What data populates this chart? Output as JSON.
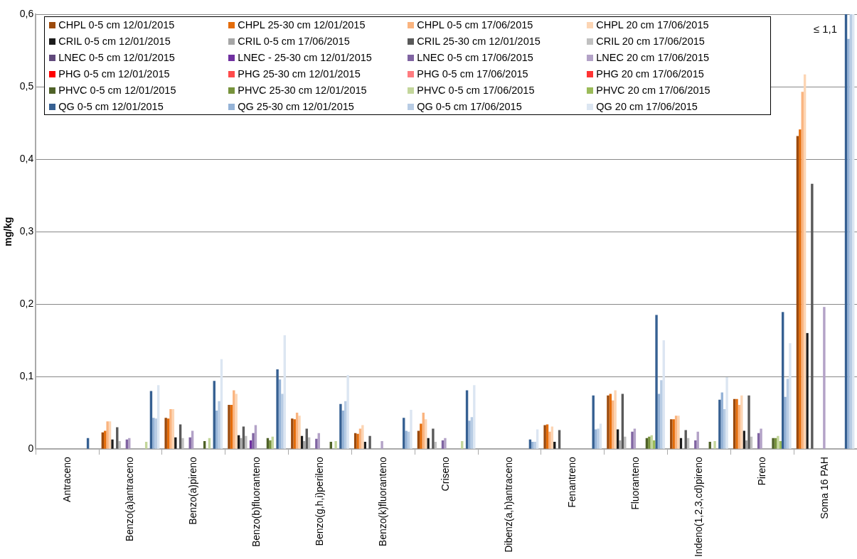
{
  "chart_data": {
    "type": "bar",
    "ylabel": "mg/kg",
    "categories": [
      "Antraceno",
      "Benzo(a)antraceno",
      "Benzo(a)pireno",
      "Benzo(b)fluoranteno",
      "Benzo(g,h,i)perileno",
      "Benzo(k)fluoranteno",
      "Criseno",
      "Dibenz(a,h)antraceno",
      "Fenantreno",
      "Fluoranteno",
      "Indeno(1,2,3,cd)pireno",
      "Pireno",
      "Soma 16 PAH"
    ],
    "ylim": [
      0,
      0.6
    ],
    "yticks": [
      0,
      {
        "value": 0.1,
        "label": "0,1"
      },
      {
        "value": 0.2,
        "label": "0,2"
      },
      {
        "value": 0.3,
        "label": "0,3"
      },
      {
        "value": 0.4,
        "label": "0,4"
      },
      {
        "value": 0.5,
        "label": "0,5"
      },
      {
        "value": 0.6,
        "label": "0,6"
      }
    ],
    "grid": "y",
    "legend": "top left",
    "annotations": [
      "≤ 1,1"
    ],
    "series": [
      {
        "name": "CHPL 0-5 cm 12/01/2015",
        "color": "#9c4a0c",
        "values": [
          null,
          0.023,
          0.043,
          0.061,
          0.042,
          0.022,
          0.025,
          null,
          0.033,
          0.074,
          0.041,
          0.069,
          0.432
        ]
      },
      {
        "name": "CHPL 25-30 cm 12/01/2015",
        "color": "#e46c0a",
        "values": [
          null,
          0.025,
          0.042,
          0.061,
          0.041,
          0.021,
          0.035,
          null,
          0.034,
          0.076,
          0.041,
          0.069,
          0.441
        ]
      },
      {
        "name": "CHPL 0-5 cm 17/06/2015",
        "color": "#fab47f",
        "values": [
          null,
          0.038,
          0.055,
          0.081,
          0.05,
          0.028,
          0.05,
          null,
          0.024,
          0.067,
          0.046,
          0.061,
          0.493
        ]
      },
      {
        "name": "CHPL 20 cm 17/06/2015",
        "color": "#fcd5b4",
        "values": [
          null,
          0.038,
          0.055,
          0.076,
          0.046,
          0.033,
          0.041,
          null,
          0.031,
          0.081,
          0.046,
          0.074,
          0.517
        ]
      },
      {
        "name": "CRIL 0-5 cm 12/01/2015",
        "color": "#1c1c1c",
        "values": [
          null,
          0.013,
          0.016,
          0.019,
          0.018,
          0.01,
          0.015,
          null,
          0.01,
          0.027,
          0.015,
          0.025,
          0.16
        ]
      },
      {
        "name": "CRIL 0-5 cm 17/06/2015",
        "color": "#a6a6a6",
        "values": [
          null,
          null,
          null,
          0.015,
          0.011,
          null,
          null,
          null,
          null,
          0.012,
          null,
          0.012,
          null
        ]
      },
      {
        "name": "CRIL 25-30 cm 12/01/2015",
        "color": "#595959",
        "values": [
          null,
          0.03,
          0.034,
          0.031,
          0.028,
          0.018,
          0.028,
          null,
          0.026,
          0.076,
          0.026,
          0.074,
          0.366
        ]
      },
      {
        "name": "CRIL 20 cm 17/06/2015",
        "color": "#c0c0c0",
        "values": [
          null,
          0.011,
          0.015,
          0.018,
          0.016,
          null,
          0.01,
          null,
          null,
          0.017,
          0.015,
          0.017,
          null
        ]
      },
      {
        "name": "LNEC 0-5 cm 12/01/2015",
        "color": "#60497b",
        "values": [
          null,
          null,
          null,
          null,
          null,
          null,
          null,
          null,
          null,
          null,
          null,
          null,
          null
        ]
      },
      {
        "name": "LNEC - 25-30 cm 12/01/2015",
        "color": "#7030a0",
        "values": [
          null,
          null,
          null,
          0.012,
          null,
          null,
          null,
          null,
          null,
          null,
          null,
          null,
          null
        ]
      },
      {
        "name": "LNEC 0-5 cm 17/06/2015",
        "color": "#8064a2",
        "values": [
          null,
          0.013,
          0.016,
          0.022,
          0.014,
          null,
          0.012,
          null,
          null,
          0.024,
          0.012,
          0.022,
          null
        ]
      },
      {
        "name": "LNEC 20 cm 17/06/2015",
        "color": "#b3a2c7",
        "values": [
          null,
          0.015,
          0.025,
          0.033,
          0.022,
          0.011,
          0.015,
          null,
          null,
          0.028,
          0.024,
          0.028,
          0.196
        ]
      },
      {
        "name": "PHG 0-5 cm 12/01/2015",
        "color": "#ff0000",
        "values": [
          null,
          null,
          null,
          null,
          null,
          null,
          null,
          null,
          null,
          null,
          null,
          null,
          null
        ]
      },
      {
        "name": "PHG 25-30 cm 12/01/2015",
        "color": "#ff4b4b",
        "values": [
          null,
          null,
          null,
          null,
          null,
          null,
          null,
          null,
          null,
          null,
          null,
          null,
          null
        ]
      },
      {
        "name": "PHG 0-5 cm 17/06/2015",
        "color": "#ff7c80",
        "values": [
          null,
          null,
          null,
          null,
          null,
          null,
          null,
          null,
          null,
          null,
          null,
          null,
          null
        ]
      },
      {
        "name": "PHG 20 cm 17/06/2015",
        "color": "#ff3333",
        "values": [
          null,
          null,
          null,
          null,
          null,
          null,
          null,
          null,
          null,
          null,
          null,
          null,
          null
        ]
      },
      {
        "name": "PHVC 0-5 cm 12/01/2015",
        "color": "#4f6228",
        "values": [
          null,
          null,
          0.011,
          0.015,
          0.01,
          null,
          null,
          null,
          null,
          0.015,
          0.01,
          0.015,
          null
        ]
      },
      {
        "name": "PHVC 25-30 cm 12/01/2015",
        "color": "#77933c",
        "values": [
          null,
          null,
          null,
          0.012,
          null,
          null,
          null,
          null,
          null,
          0.017,
          null,
          0.015,
          null
        ]
      },
      {
        "name": "PHVC 0-5 cm 17/06/2015",
        "color": "#c3d69b",
        "values": [
          null,
          0.01,
          0.015,
          0.017,
          0.011,
          null,
          0.011,
          null,
          null,
          0.019,
          0.011,
          0.018,
          null
        ]
      },
      {
        "name": "PHVC 20 cm 17/06/2015",
        "color": "#9bbb59",
        "values": [
          null,
          null,
          null,
          null,
          null,
          null,
          null,
          null,
          null,
          0.012,
          null,
          0.011,
          null
        ]
      },
      {
        "name": "QG 0-5 cm 12/01/2015",
        "color": "#366092",
        "values": [
          0.015,
          0.08,
          0.094,
          0.11,
          0.062,
          0.043,
          0.081,
          0.013,
          0.074,
          0.185,
          0.068,
          0.189,
          0.6
        ]
      },
      {
        "name": "QG 25-30 cm 12/01/2015",
        "color": "#95b3d7",
        "values": [
          null,
          0.043,
          0.053,
          0.096,
          0.053,
          0.025,
          0.039,
          0.01,
          0.027,
          0.076,
          0.078,
          0.072,
          0.566
        ]
      },
      {
        "name": "QG 0-5 cm 17/06/2015",
        "color": "#b8cce4",
        "values": [
          null,
          0.042,
          0.066,
          0.076,
          0.066,
          0.024,
          0.044,
          0.01,
          0.028,
          0.095,
          0.055,
          0.097,
          0.6
        ]
      },
      {
        "name": "QG 20 cm 17/06/2015",
        "color": "#dce6f2",
        "values": [
          null,
          0.088,
          0.124,
          0.157,
          0.102,
          0.054,
          0.088,
          0.027,
          0.035,
          0.15,
          0.099,
          0.146,
          0.6
        ]
      }
    ]
  }
}
